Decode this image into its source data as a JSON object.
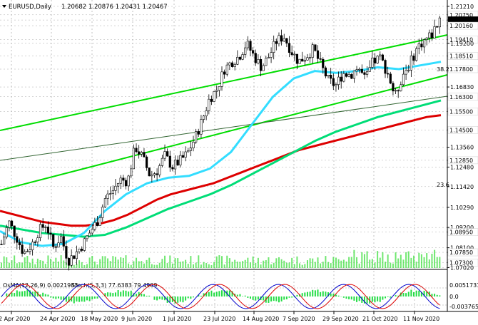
{
  "header": {
    "symbol": "EURUSD,Daily",
    "ohlc": "1.20682 1.20876 1.20431 1.20467"
  },
  "chart_data": {
    "type": "candlestick",
    "price_ticks": [
      "1.21210",
      "1.20750",
      "1.20467",
      "1.20160",
      "1.19410",
      "1.19200",
      "1.18510",
      "1.17800",
      "1.16830",
      "1.16300",
      "1.15500",
      "1.14500",
      "1.13560",
      "1.12850",
      "1.12480",
      "1.11420",
      "1.10290",
      "1.09200",
      "1.08950",
      "1.08100",
      "1.07850",
      "1.07300",
      "1.07020"
    ],
    "tagged_levels": [
      "1.20750",
      "1.20467",
      "1.20160",
      "1.19410",
      "1.18510",
      "1.17800",
      "1.16300",
      "1.15500",
      "1.14500",
      "1.12850",
      "1.08950",
      "1.07850",
      "1.07300"
    ],
    "fib_labels": [
      "38.2",
      "23.6"
    ],
    "x_labels": [
      "2 Apr 2020",
      "24 Apr 2020",
      "18 May 2020",
      "9 Jun 2020",
      "1 Jul 2020",
      "23 Jul 2020",
      "14 Aug 2020",
      "7 Sep 2020",
      "29 Sep 2020",
      "21 Oct 2020",
      "11 Nov 2020"
    ],
    "close_series": [
      1.083,
      1.095,
      1.087,
      1.078,
      1.082,
      1.09,
      1.094,
      1.081,
      1.087,
      1.074,
      1.078,
      1.083,
      1.09,
      1.096,
      1.108,
      1.112,
      1.118,
      1.117,
      1.136,
      1.13,
      1.12,
      1.123,
      1.131,
      1.125,
      1.128,
      1.132,
      1.14,
      1.15,
      1.162,
      1.167,
      1.178,
      1.182,
      1.185,
      1.192,
      1.185,
      1.179,
      1.185,
      1.193,
      1.196,
      1.188,
      1.182,
      1.185,
      1.189,
      1.18,
      1.172,
      1.169,
      1.176,
      1.175,
      1.179,
      1.172,
      1.182,
      1.184,
      1.176,
      1.163,
      1.175,
      1.181,
      1.19,
      1.194,
      1.197,
      1.206
    ],
    "ma_slow": [
      1.101,
      1.099,
      1.097,
      1.095,
      1.094,
      1.093,
      1.093,
      1.094,
      1.096,
      1.099,
      1.103,
      1.107,
      1.11,
      1.112,
      1.114,
      1.116,
      1.119,
      1.122,
      1.125,
      1.128,
      1.131,
      1.134,
      1.136,
      1.138,
      1.14,
      1.142,
      1.144,
      1.146,
      1.148,
      1.15,
      1.152,
      1.153
    ],
    "ma_mid": [
      1.093,
      1.091,
      1.089,
      1.088,
      1.087,
      1.088,
      1.092,
      1.097,
      1.102,
      1.106,
      1.11,
      1.115,
      1.121,
      1.127,
      1.133,
      1.139,
      1.144,
      1.148,
      1.152,
      1.155,
      1.158,
      1.161
    ],
    "ma_fast": [
      1.09,
      1.084,
      1.082,
      1.083,
      1.089,
      1.101,
      1.11,
      1.116,
      1.119,
      1.12,
      1.124,
      1.133,
      1.148,
      1.163,
      1.173,
      1.177,
      1.176,
      1.177,
      1.179,
      1.178,
      1.18,
      1.182
    ],
    "osma_label": "OsMA(12,26,9) 0.0021983",
    "stoch_label": "Stoch(5,3,3) 77.6383 79.4909",
    "indicator_ticks": [
      "0.0051731",
      "0.0",
      "-0.003765"
    ]
  },
  "colors": {
    "candle": "#000000",
    "channel": "#00dd00",
    "ma_fast": "#33ddff",
    "ma_mid": "#00dd77",
    "ma_slow": "#dd0000",
    "volume": "#33dd33",
    "osma": "#22dd44",
    "stoch_main": "#0000cc",
    "stoch_signal": "#dd0000"
  }
}
